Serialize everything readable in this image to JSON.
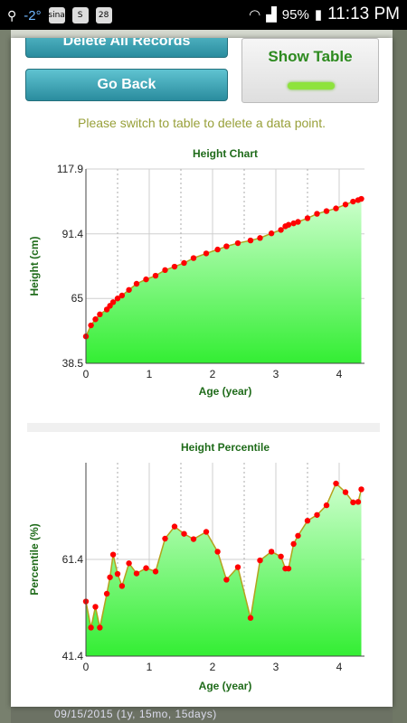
{
  "status_bar": {
    "temperature": "-2°",
    "sina_label": "sina",
    "calendar_day": "28",
    "battery": "95%",
    "time": "11:13 PM"
  },
  "background_text": "09/15/2015 (1y, 15mo, 15days)",
  "buttons": {
    "delete_all": "Delete All Records",
    "go_back": "Go Back",
    "show_table": "Show Table"
  },
  "hint": "Please switch to table to delete a data point.",
  "colors": {
    "teal_button": "#3aa9ba",
    "title_green": "#1f6b1a",
    "line": "#b4a21c",
    "point": "#ff0000",
    "fill_top": "#ccffcc",
    "fill_bottom": "#33ee33"
  },
  "chart_data": [
    {
      "type": "area",
      "title": "Height Chart",
      "xlabel": "Age (year)",
      "ylabel": "Height (cm)",
      "xlim": [
        0,
        4.4
      ],
      "ylim": [
        38.5,
        117.9
      ],
      "xticks": [
        "0",
        "1",
        "2",
        "3",
        "4"
      ],
      "yticks": [
        "38.5",
        "65",
        "91.4",
        "117.9"
      ],
      "grid": true,
      "series": [
        {
          "x": [
            0.0,
            0.08,
            0.15,
            0.22,
            0.33,
            0.38,
            0.43,
            0.5,
            0.57,
            0.68,
            0.8,
            0.95,
            1.1,
            1.25,
            1.4,
            1.55,
            1.7,
            1.9,
            2.08,
            2.22,
            2.4,
            2.6,
            2.75,
            2.93,
            3.08,
            3.15,
            3.2,
            3.28,
            3.35,
            3.5,
            3.65,
            3.8,
            3.95,
            4.1,
            4.22,
            4.3,
            4.35
          ],
          "y": [
            49.5,
            54,
            56.5,
            58.5,
            60.5,
            62,
            63.5,
            65,
            66.2,
            68.5,
            71,
            72.8,
            74.3,
            76.6,
            78,
            79.5,
            81.5,
            83.4,
            85,
            86.3,
            87.6,
            88.7,
            89.7,
            91.6,
            93,
            94.5,
            95.1,
            95.7,
            96.3,
            97.8,
            99.6,
            100.7,
            101.8,
            103.4,
            104.6,
            105.2,
            105.7
          ]
        }
      ]
    },
    {
      "type": "area",
      "title": "Height Percentile",
      "xlabel": "Age (year)",
      "ylabel": "Percentile (%)",
      "xlim": [
        0,
        4.4
      ],
      "ylim": [
        41.4,
        81.4
      ],
      "xticks": [
        "0",
        "1",
        "2",
        "3",
        "4"
      ],
      "yticks": [
        "41.4",
        "61.4"
      ],
      "grid": true,
      "series": [
        {
          "x": [
            0.0,
            0.08,
            0.15,
            0.22,
            0.33,
            0.38,
            0.43,
            0.5,
            0.57,
            0.68,
            0.8,
            0.95,
            1.1,
            1.25,
            1.4,
            1.55,
            1.7,
            1.9,
            2.08,
            2.22,
            2.4,
            2.6,
            2.75,
            2.93,
            3.08,
            3.15,
            3.2,
            3.28,
            3.35,
            3.5,
            3.65,
            3.8,
            3.95,
            4.1,
            4.22,
            4.3,
            4.35
          ],
          "y": [
            52.7,
            47.3,
            51.6,
            47.3,
            54.3,
            57.7,
            62.4,
            58.4,
            55.9,
            60.6,
            58.5,
            59.6,
            58.9,
            65.7,
            68.2,
            66.7,
            65.6,
            67.1,
            63.0,
            57.2,
            59.8,
            49.3,
            61.2,
            63.0,
            62.0,
            59.5,
            59.5,
            64.6,
            66.3,
            69.4,
            70.6,
            72.6,
            77.1,
            75.3,
            73.2,
            73.3,
            75.9
          ]
        }
      ]
    }
  ]
}
